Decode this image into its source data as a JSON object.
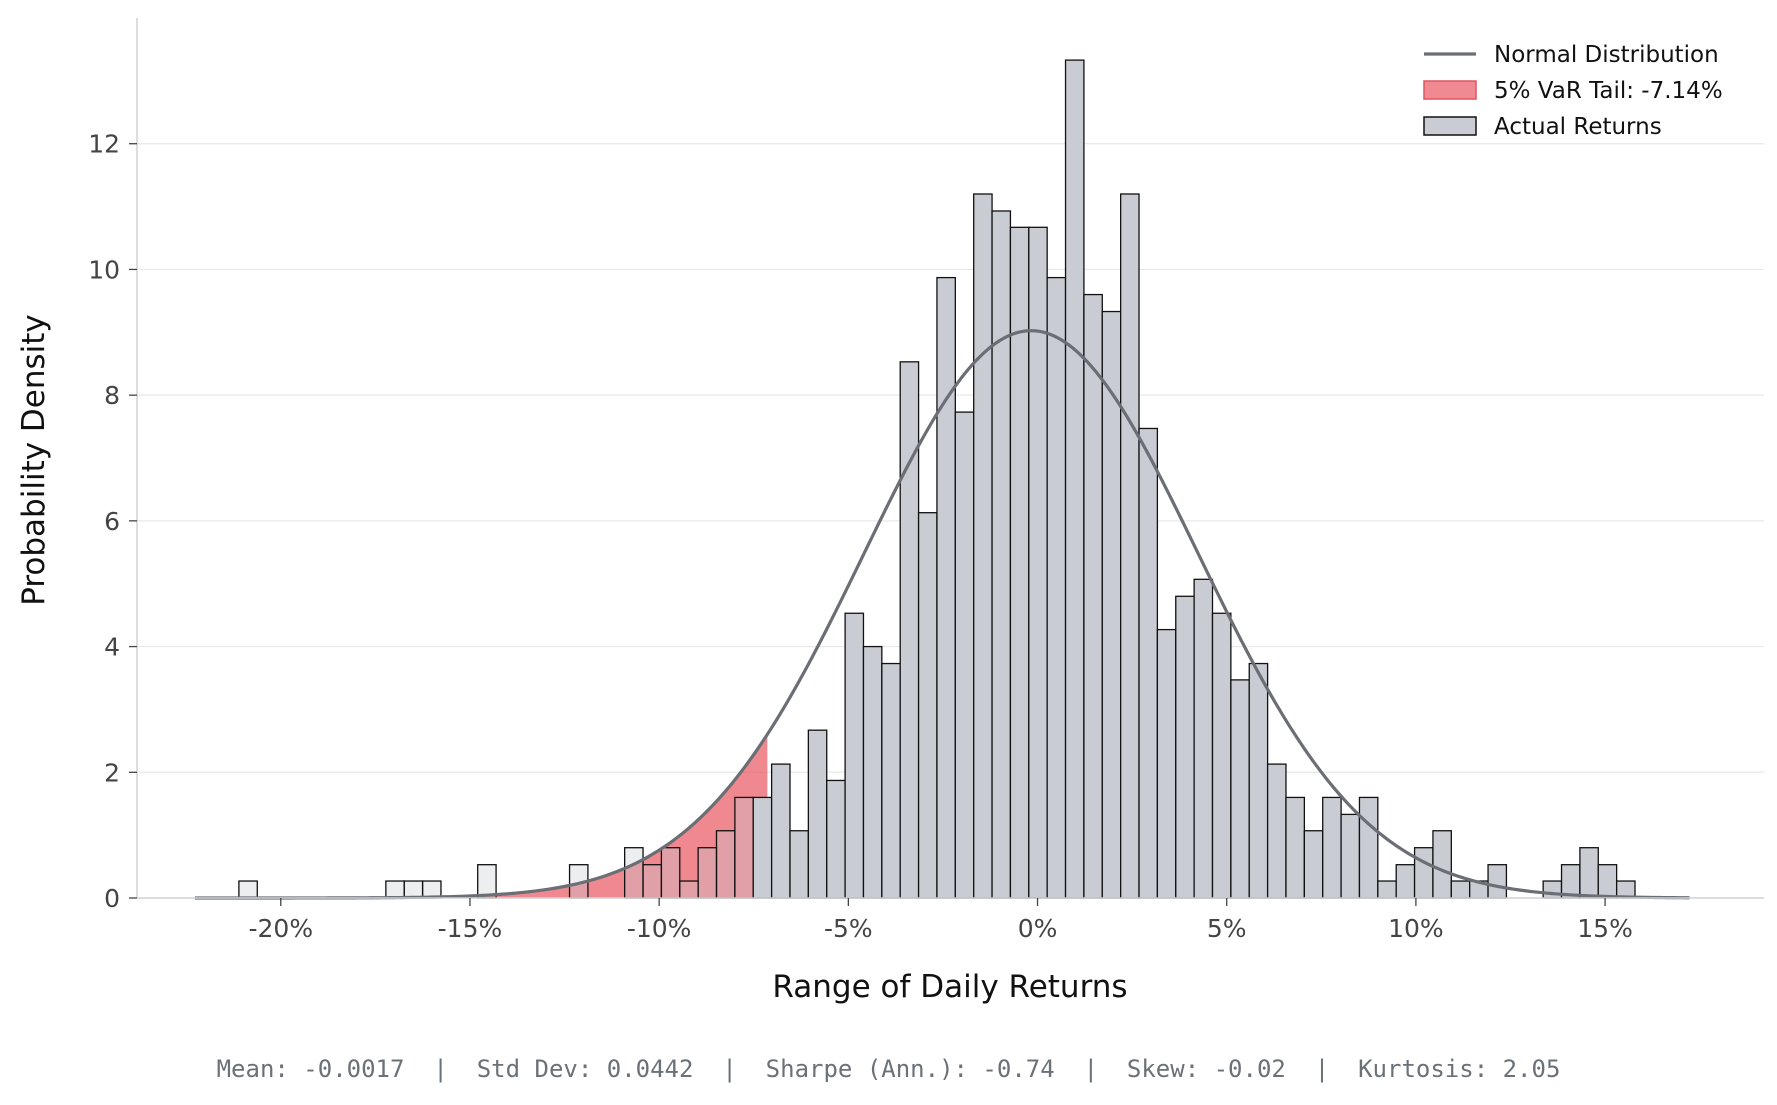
{
  "chart_data": {
    "type": "histogram",
    "xlabel": "Range of Daily Returns",
    "ylabel": "Probability Density",
    "xlim": [
      -0.238,
      0.192
    ],
    "ylim": [
      0,
      14
    ],
    "x_ticks": [
      {
        "value": -0.2,
        "label": "-20%"
      },
      {
        "value": -0.15,
        "label": "-15%"
      },
      {
        "value": -0.1,
        "label": "-10%"
      },
      {
        "value": -0.05,
        "label": "-5%"
      },
      {
        "value": 0.0,
        "label": "0%"
      },
      {
        "value": 0.05,
        "label": "5%"
      },
      {
        "value": 0.1,
        "label": "10%"
      },
      {
        "value": 0.15,
        "label": "15%"
      }
    ],
    "y_ticks": [
      {
        "value": 0,
        "label": "0"
      },
      {
        "value": 2,
        "label": "2"
      },
      {
        "value": 4,
        "label": "4"
      },
      {
        "value": 6,
        "label": "6"
      },
      {
        "value": 8,
        "label": "8"
      },
      {
        "value": 10,
        "label": "10"
      },
      {
        "value": 12,
        "label": "12"
      }
    ],
    "grid": "horizontal",
    "legend_position": "top-right",
    "series": [
      {
        "name": "Actual Returns",
        "type": "histogram",
        "color": "#c9cdd3",
        "edge_color": "#111111",
        "bin_start": -0.21107,
        "bin_width": 0.004855,
        "values": [
          0.27,
          0,
          0,
          0,
          0,
          0,
          0,
          0,
          0.27,
          0.27,
          0.27,
          0,
          0,
          0.53,
          0,
          0,
          0,
          0,
          0.53,
          0,
          0,
          0.8,
          0.53,
          0.8,
          0.27,
          0.8,
          1.07,
          1.6,
          1.6,
          2.13,
          1.07,
          2.67,
          1.87,
          4.53,
          4.0,
          3.73,
          8.53,
          6.13,
          9.87,
          7.73,
          11.2,
          10.93,
          10.67,
          10.67,
          9.87,
          13.33,
          9.6,
          9.33,
          11.2,
          7.47,
          4.27,
          4.8,
          5.07,
          4.53,
          3.47,
          3.73,
          2.13,
          1.6,
          1.07,
          1.6,
          1.33,
          1.6,
          0.27,
          0.53,
          0.8,
          1.07,
          0.27,
          0.27,
          0.53,
          0,
          0,
          0.27,
          0.53,
          0.8,
          0.53,
          0.27
        ]
      },
      {
        "name": "Normal Distribution",
        "type": "line",
        "color": "#6b6e75",
        "mean": -0.0017,
        "std": 0.0442,
        "x_range": [
          -0.2227,
          0.1723
        ]
      },
      {
        "name": "5% VaR Tail: -7.14%",
        "type": "area",
        "color": "#e8555f",
        "threshold": -0.0714
      }
    ],
    "legend": [
      {
        "label": "Normal Distribution",
        "kind": "line",
        "color": "#6b6e75"
      },
      {
        "label": "5% VaR Tail: -7.14%",
        "kind": "patch",
        "color": "#f08a92",
        "edge": "#e05560"
      },
      {
        "label": "Actual Returns",
        "kind": "patch",
        "color": "#c9cdd3",
        "edge": "#111111"
      }
    ]
  },
  "stats_line": "Mean: -0.0017  |  Std Dev: 0.0442  |  Sharpe (Ann.): -0.74  |  Skew: -0.02  |  Kurtosis: 2.05"
}
